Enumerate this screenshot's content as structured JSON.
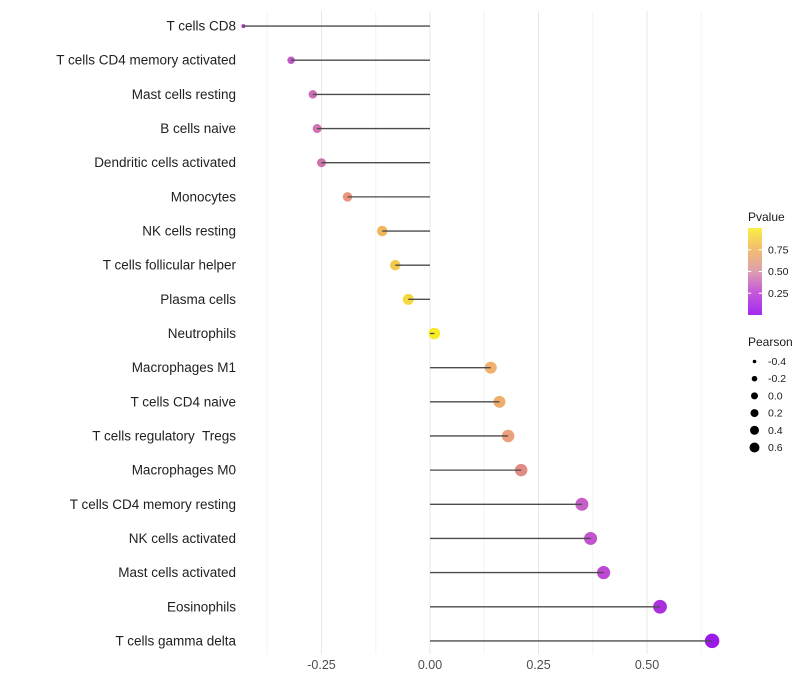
{
  "chart_data": {
    "type": "scatter",
    "style": "lollipop",
    "orientation": "horizontal",
    "title": "",
    "xlabel": "",
    "ylabel": "",
    "xlim": [
      -0.46,
      0.67
    ],
    "grid": "vertical-only",
    "x_ticks": [
      {
        "label": "-0.25",
        "value": -0.25
      },
      {
        "label": "0.00",
        "value": 0.0
      },
      {
        "label": "0.25",
        "value": 0.25
      },
      {
        "label": "0.50",
        "value": 0.5
      }
    ],
    "minor_grid_values": [
      -0.375,
      -0.125,
      0.125,
      0.375,
      0.625
    ],
    "points": [
      {
        "label": "T cells CD8",
        "pearson": -0.43,
        "size": 4.0,
        "color": "#a83bc8"
      },
      {
        "label": "T cells CD4 memory activated",
        "pearson": -0.32,
        "size": 7.5,
        "color": "#bf58c3"
      },
      {
        "label": "Mast cells resting",
        "pearson": -0.27,
        "size": 8.5,
        "color": "#cc6cb7"
      },
      {
        "label": "B cells naive",
        "pearson": -0.26,
        "size": 9.0,
        "color": "#d072b3"
      },
      {
        "label": "Dendritic cells activated",
        "pearson": -0.25,
        "size": 9.0,
        "color": "#cd73ac"
      },
      {
        "label": "Monocytes",
        "pearson": -0.19,
        "size": 9.5,
        "color": "#e9957e"
      },
      {
        "label": "NK cells resting",
        "pearson": -0.11,
        "size": 10.5,
        "color": "#eeb75c"
      },
      {
        "label": "T cells follicular helper",
        "pearson": -0.08,
        "size": 10.5,
        "color": "#f2c84f"
      },
      {
        "label": "Plasma cells",
        "pearson": -0.05,
        "size": 11.0,
        "color": "#f4d83e"
      },
      {
        "label": "Neutrophils",
        "pearson": 0.01,
        "size": 11.5,
        "color": "#f8ec25"
      },
      {
        "label": "Macrophages M1",
        "pearson": 0.14,
        "size": 12.0,
        "color": "#f0b070"
      },
      {
        "label": "T cells CD4 naive",
        "pearson": 0.16,
        "size": 12.0,
        "color": "#efad6c"
      },
      {
        "label": "T cells regulatory  Tregs",
        "pearson": 0.18,
        "size": 12.5,
        "color": "#ec9f7a"
      },
      {
        "label": "Macrophages M0",
        "pearson": 0.21,
        "size": 12.5,
        "color": "#e18b85"
      },
      {
        "label": "T cells CD4 memory resting",
        "pearson": 0.35,
        "size": 13.0,
        "color": "#c75fc8"
      },
      {
        "label": "NK cells activated",
        "pearson": 0.37,
        "size": 13.0,
        "color": "#c254cd"
      },
      {
        "label": "Mast cells activated",
        "pearson": 0.4,
        "size": 13.2,
        "color": "#bb49d3"
      },
      {
        "label": "Eosinophils",
        "pearson": 0.53,
        "size": 13.8,
        "color": "#aa30de"
      },
      {
        "label": "T cells gamma delta",
        "pearson": 0.65,
        "size": 14.5,
        "color": "#9c1ae9"
      }
    ],
    "legend": {
      "position": "right",
      "pvalue": {
        "title": "Pvalue",
        "range": [
          0,
          1
        ],
        "ticks": [
          {
            "label": "0.75",
            "value": 0.75
          },
          {
            "label": "0.50",
            "value": 0.5
          },
          {
            "label": "0.25",
            "value": 0.25
          }
        ],
        "gradient_stops": [
          {
            "offset": 0.0,
            "color": "#f9ee45"
          },
          {
            "offset": 0.22,
            "color": "#f4c169"
          },
          {
            "offset": 0.5,
            "color": "#dc9fb0"
          },
          {
            "offset": 0.73,
            "color": "#c75ad8"
          },
          {
            "offset": 1.0,
            "color": "#a42af2"
          }
        ]
      },
      "pearson": {
        "title": "Pearson",
        "entries": [
          {
            "label": "-0.4",
            "diameter": 3.6
          },
          {
            "label": "-0.2",
            "diameter": 5.6
          },
          {
            "label": "0.0",
            "diameter": 7.0
          },
          {
            "label": "0.2",
            "diameter": 8.0
          },
          {
            "label": "0.4",
            "diameter": 9.0
          },
          {
            "label": "0.6",
            "diameter": 10.0
          }
        ],
        "dot_color": "#000000"
      }
    },
    "colors": {
      "background": "#ffffff",
      "stem": "#4b4b4b",
      "grid_major": "#e7e7e7",
      "grid_minor": "#f3f3f3",
      "axis_tick_text": "#4d4d4d",
      "category_text": "#212121",
      "legend_text": "#1a1a1a"
    }
  }
}
